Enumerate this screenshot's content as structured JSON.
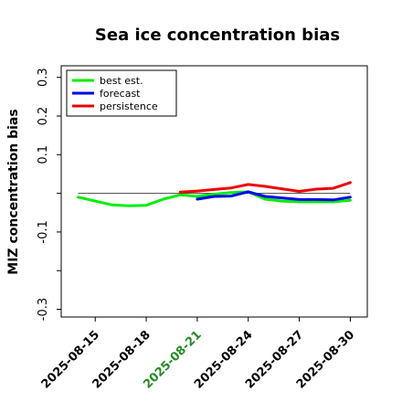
{
  "chart_data": {
    "type": "line",
    "title": "Sea ice concentration bias",
    "ylabel": "MIZ concentration bias",
    "xlabel": "",
    "ylim": [
      -0.32,
      0.33
    ],
    "yticks": [
      -0.3,
      -0.2,
      -0.1,
      0.0,
      0.1,
      0.2,
      0.3
    ],
    "ytick_labels": [
      "-0.3",
      "",
      "-0.1",
      "",
      "0.1",
      "0.2",
      "0.3"
    ],
    "xlim": [
      "2025-08-13",
      "2025-08-31"
    ],
    "xticks": [
      "2025-08-15",
      "2025-08-18",
      "2025-08-21",
      "2025-08-24",
      "2025-08-27",
      "2025-08-30"
    ],
    "highlight_tick": "2025-08-21",
    "highlight_color": "#228B22",
    "zero_line": 0.0,
    "legend_position": "top-left",
    "series": [
      {
        "name": "best est.",
        "color": "#00ee00",
        "width": 3,
        "x": [
          "2025-08-14",
          "2025-08-15",
          "2025-08-16",
          "2025-08-17",
          "2025-08-18",
          "2025-08-19",
          "2025-08-20",
          "2025-08-21",
          "2025-08-22",
          "2025-08-23",
          "2025-08-24",
          "2025-08-25",
          "2025-08-26",
          "2025-08-27",
          "2025-08-28",
          "2025-08-29",
          "2025-08-30"
        ],
        "values": [
          -0.01,
          -0.02,
          -0.03,
          -0.032,
          -0.031,
          -0.015,
          -0.004,
          -0.008,
          -0.002,
          0.002,
          0.004,
          -0.015,
          -0.02,
          -0.022,
          -0.022,
          -0.022,
          -0.018
        ]
      },
      {
        "name": "forecast",
        "color": "#0000ee",
        "width": 3,
        "x": [
          "2025-08-21",
          "2025-08-22",
          "2025-08-23",
          "2025-08-24",
          "2025-08-25",
          "2025-08-27",
          "2025-08-28",
          "2025-08-29",
          "2025-08-30"
        ],
        "values": [
          -0.015,
          -0.008,
          -0.007,
          0.004,
          -0.008,
          -0.016,
          -0.016,
          -0.017,
          -0.01
        ]
      },
      {
        "name": "persistence",
        "color": "#ee0000",
        "width": 3,
        "x": [
          "2025-08-20",
          "2025-08-21",
          "2025-08-22",
          "2025-08-23",
          "2025-08-24",
          "2025-08-25",
          "2025-08-27",
          "2025-08-28",
          "2025-08-29",
          "2025-08-30"
        ],
        "values": [
          0.003,
          0.006,
          0.01,
          0.014,
          0.023,
          0.018,
          0.005,
          0.011,
          0.013,
          0.028
        ]
      }
    ]
  }
}
